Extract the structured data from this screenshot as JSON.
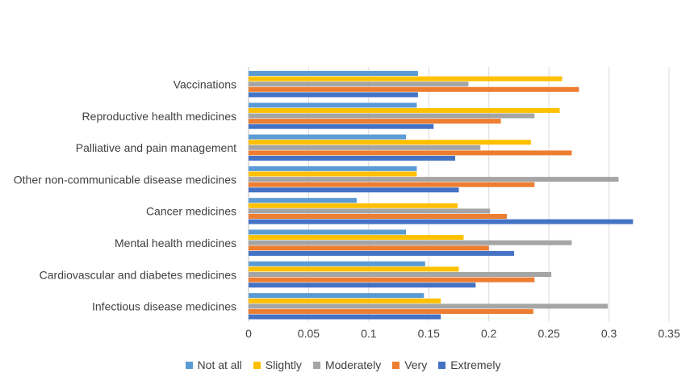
{
  "chart_data": {
    "type": "bar",
    "orientation": "horizontal",
    "title": "",
    "xlabel": "",
    "ylabel": "",
    "xlim": [
      0,
      0.35
    ],
    "x_ticks": [
      "0",
      "0.05",
      "0.1",
      "0.15",
      "0.2",
      "0.25",
      "0.3",
      "0.35"
    ],
    "grid": true,
    "legend_position": "bottom",
    "categories": [
      "Vaccinations",
      "Reproductive health medicines",
      "Palliative and pain management",
      "Other non-communicable disease medicines",
      "Cancer medicines",
      "Mental health medicines",
      "Cardiovascular and diabetes medicines",
      "Infectious disease medicines"
    ],
    "series": [
      {
        "name": "Not at all",
        "color": "#5b9bd5",
        "values": [
          0.141,
          0.14,
          0.131,
          0.14,
          0.09,
          0.131,
          0.147,
          0.146
        ]
      },
      {
        "name": "Slightly",
        "color": "#ffc000",
        "values": [
          0.261,
          0.259,
          0.235,
          0.14,
          0.174,
          0.179,
          0.175,
          0.16
        ]
      },
      {
        "name": "Moderately",
        "color": "#a5a5a5",
        "values": [
          0.183,
          0.238,
          0.193,
          0.308,
          0.201,
          0.269,
          0.252,
          0.299
        ]
      },
      {
        "name": "Very",
        "color": "#ed7d31",
        "values": [
          0.275,
          0.21,
          0.269,
          0.238,
          0.215,
          0.2,
          0.238,
          0.237
        ]
      },
      {
        "name": "Extremely",
        "color": "#4472c4",
        "values": [
          0.141,
          0.154,
          0.172,
          0.175,
          0.32,
          0.221,
          0.189,
          0.16
        ]
      }
    ]
  }
}
